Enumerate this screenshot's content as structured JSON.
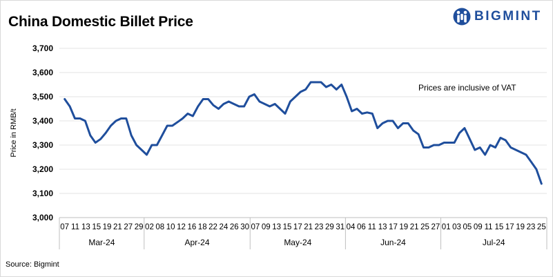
{
  "header": {
    "title": "China Domestic Billet Price",
    "logo_text": "BIGMINT",
    "brand_color": "#1f4e9c"
  },
  "footer": {
    "source": "Source: Bigmint"
  },
  "chart_data": {
    "type": "line",
    "title": "China Domestic Billet Price",
    "ylabel": "Price in RMB/t",
    "xlabel": "",
    "ylim": [
      3000,
      3700
    ],
    "yticks": [
      3000,
      3100,
      3200,
      3300,
      3400,
      3500,
      3600,
      3700
    ],
    "grid": true,
    "annotation": "Prices are inclusive of VAT",
    "line_color": "#1f4e9c",
    "x_tick_labels": [
      "07",
      "11",
      "13",
      "15",
      "19",
      "21",
      "27",
      "29",
      "02",
      "08",
      "10",
      "12",
      "16",
      "18",
      "22",
      "24",
      "26",
      "30",
      "07",
      "09",
      "13",
      "15",
      "17",
      "21",
      "23",
      "29",
      "31",
      "04",
      "06",
      "11",
      "13",
      "17",
      "19",
      "21",
      "25",
      "27",
      "01",
      "03",
      "05",
      "09",
      "11",
      "15",
      "17",
      "19",
      "23",
      "25"
    ],
    "months": [
      {
        "label": "Mar-24",
        "start": 0,
        "end": 7
      },
      {
        "label": "Apr-24",
        "start": 8,
        "end": 17
      },
      {
        "label": "May-24",
        "start": 18,
        "end": 26
      },
      {
        "label": "Jun-24",
        "start": 27,
        "end": 35
      },
      {
        "label": "Jul-24",
        "start": 36,
        "end": 45
      }
    ],
    "series": [
      {
        "values": [
          3490,
          3460,
          3410,
          3410,
          3400,
          3340,
          3310,
          3325,
          3350,
          3380,
          3400,
          3410,
          3410,
          3340,
          3300,
          3280,
          3260,
          3300,
          3300,
          3340,
          3380,
          3380,
          3395,
          3410,
          3430,
          3420,
          3460,
          3490,
          3490,
          3465,
          3450,
          3470,
          3480,
          3470,
          3460,
          3460,
          3500,
          3510,
          3480,
          3470,
          3460,
          3470,
          3450,
          3430,
          3480,
          3500,
          3520,
          3530,
          3560,
          3560,
          3560,
          3540,
          3550,
          3530,
          3550,
          3500,
          3440,
          3450,
          3430,
          3435,
          3430,
          3370,
          3390,
          3400,
          3400,
          3370,
          3390,
          3390,
          3360,
          3345,
          3290,
          3290,
          3300,
          3300,
          3310,
          3310,
          3310,
          3350,
          3370,
          3325,
          3280,
          3290,
          3260,
          3300,
          3290,
          3330,
          3320,
          3290,
          3280,
          3270,
          3260,
          3230,
          3200,
          3140
        ]
      }
    ]
  }
}
